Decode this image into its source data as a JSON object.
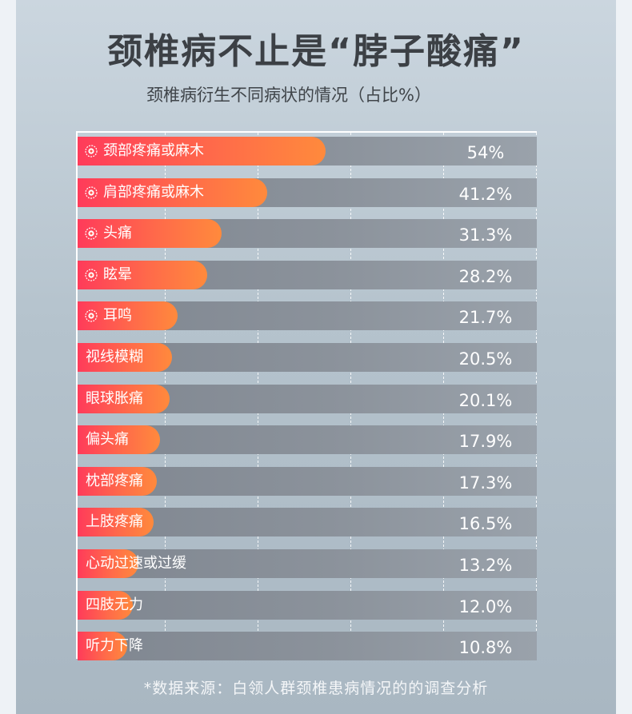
{
  "title": "颈椎病不止是“脖子酸痛”",
  "subtitle": "颈椎病衍生不同病状的情况（占比%）",
  "source_note": "*数据来源：白领人群颈椎患病情况的的调查分析",
  "colors": {
    "bar_start": "#ff3b5a",
    "bar_end": "#ff8a3c",
    "track": "#8b929b"
  },
  "chart_data": {
    "type": "bar",
    "orientation": "horizontal",
    "unit": "%",
    "xlim": [
      0,
      100
    ],
    "grid": "vertical dashed",
    "categories": [
      "颈部疼痛或麻木",
      "肩部疼痛或麻木",
      "头痛",
      "眩晕",
      "耳鸣",
      "视线模糊",
      "眼球胀痛",
      "偏头痛",
      "枕部疼痛",
      "上肢疼痛",
      "心动过速或过缓",
      "四肢无力",
      "听力下降"
    ],
    "values": [
      54,
      41.2,
      31.3,
      28.2,
      21.7,
      20.5,
      20.1,
      17.9,
      17.3,
      16.5,
      13.2,
      12.0,
      10.8
    ],
    "value_labels": [
      "54%",
      "41.2%",
      "31.3%",
      "28.2%",
      "21.7%",
      "20.5%",
      "20.1%",
      "17.9%",
      "17.3%",
      "16.5%",
      "13.2%",
      "12.0%",
      "10.8%"
    ],
    "highlighted_count": 5,
    "highlight_icon": "sparkle-circle-icon"
  }
}
